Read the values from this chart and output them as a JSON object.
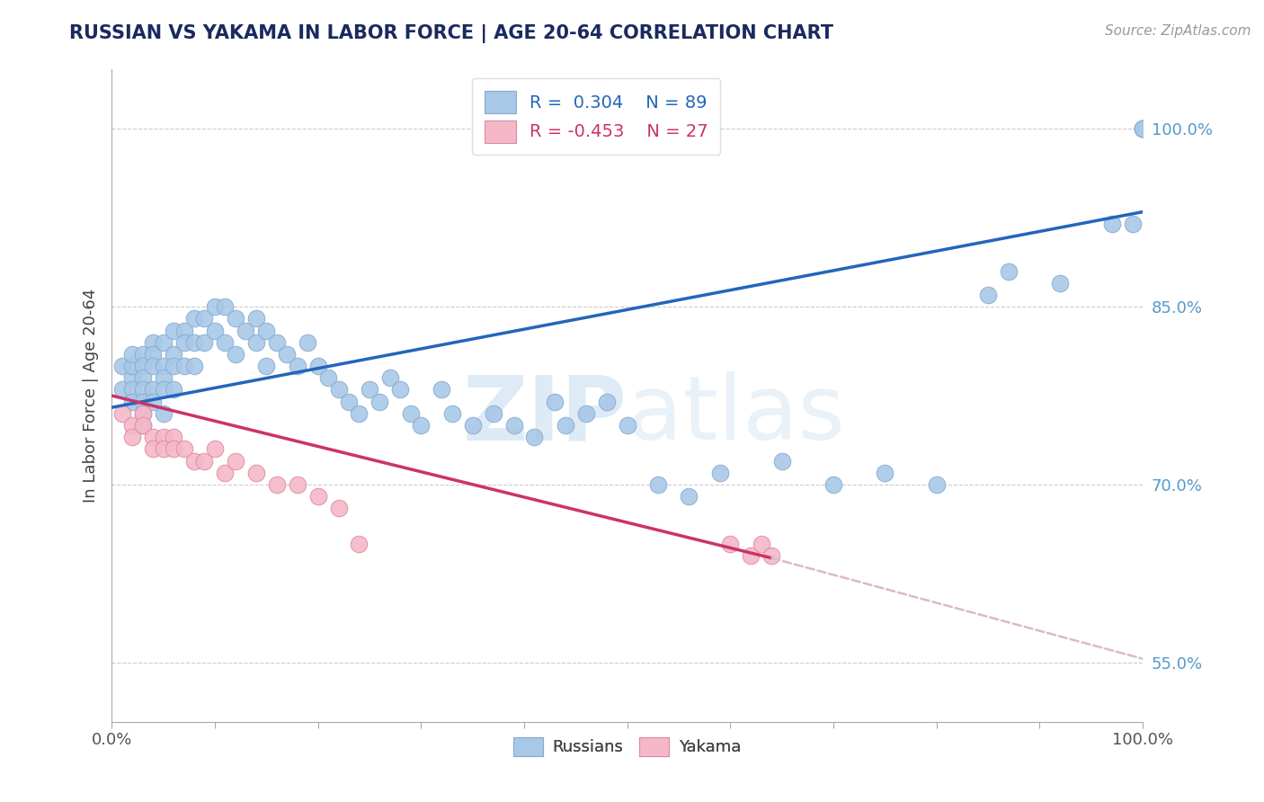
{
  "title": "RUSSIAN VS YAKAMA IN LABOR FORCE | AGE 20-64 CORRELATION CHART",
  "source_text": "Source: ZipAtlas.com",
  "ylabel": "In Labor Force | Age 20-64",
  "background_color": "#ffffff",
  "russian_color": "#a8c8e8",
  "yakama_color": "#f4b8c8",
  "russian_edge": "#88aacc",
  "yakama_edge": "#e088a0",
  "trendline_russian": "#2266bb",
  "trendline_yakama": "#cc3366",
  "trendline_yakama_dashed_color": "#ddb8cc",
  "watermark_color": "#ccdded",
  "xlim": [
    0.0,
    1.0
  ],
  "ylim": [
    0.5,
    1.05
  ],
  "ytick_vals": [
    0.55,
    0.7,
    0.85,
    1.0
  ],
  "ytick_labels": [
    "55.0%",
    "70.0%",
    "85.0%",
    "100.0%"
  ],
  "legend_r_russian": "0.304",
  "legend_n_russian": "89",
  "legend_r_yakama": "-0.453",
  "legend_n_yakama": "27",
  "russians_x": [
    0.01,
    0.01,
    0.02,
    0.02,
    0.02,
    0.02,
    0.02,
    0.03,
    0.03,
    0.03,
    0.03,
    0.03,
    0.03,
    0.03,
    0.04,
    0.04,
    0.04,
    0.04,
    0.04,
    0.05,
    0.05,
    0.05,
    0.05,
    0.05,
    0.06,
    0.06,
    0.06,
    0.06,
    0.07,
    0.07,
    0.07,
    0.08,
    0.08,
    0.08,
    0.09,
    0.09,
    0.1,
    0.1,
    0.11,
    0.11,
    0.12,
    0.12,
    0.13,
    0.14,
    0.14,
    0.15,
    0.15,
    0.16,
    0.17,
    0.18,
    0.19,
    0.2,
    0.21,
    0.22,
    0.23,
    0.24,
    0.25,
    0.26,
    0.27,
    0.28,
    0.29,
    0.3,
    0.32,
    0.33,
    0.35,
    0.37,
    0.39,
    0.41,
    0.43,
    0.44,
    0.46,
    0.48,
    0.5,
    0.53,
    0.56,
    0.59,
    0.65,
    0.7,
    0.75,
    0.8,
    0.85,
    0.87,
    0.92,
    0.97,
    0.99,
    1.0,
    1.0,
    1.0,
    1.0
  ],
  "russians_y": [
    0.78,
    0.8,
    0.79,
    0.8,
    0.81,
    0.78,
    0.77,
    0.81,
    0.8,
    0.79,
    0.78,
    0.77,
    0.76,
    0.75,
    0.82,
    0.81,
    0.8,
    0.78,
    0.77,
    0.82,
    0.8,
    0.79,
    0.78,
    0.76,
    0.83,
    0.81,
    0.8,
    0.78,
    0.83,
    0.82,
    0.8,
    0.84,
    0.82,
    0.8,
    0.84,
    0.82,
    0.85,
    0.83,
    0.85,
    0.82,
    0.84,
    0.81,
    0.83,
    0.84,
    0.82,
    0.83,
    0.8,
    0.82,
    0.81,
    0.8,
    0.82,
    0.8,
    0.79,
    0.78,
    0.77,
    0.76,
    0.78,
    0.77,
    0.79,
    0.78,
    0.76,
    0.75,
    0.78,
    0.76,
    0.75,
    0.76,
    0.75,
    0.74,
    0.77,
    0.75,
    0.76,
    0.77,
    0.75,
    0.7,
    0.69,
    0.71,
    0.72,
    0.7,
    0.71,
    0.7,
    0.86,
    0.88,
    0.87,
    0.92,
    0.92,
    1.0,
    1.0,
    1.0,
    1.0
  ],
  "yakama_x": [
    0.01,
    0.02,
    0.02,
    0.03,
    0.03,
    0.04,
    0.04,
    0.05,
    0.05,
    0.06,
    0.06,
    0.07,
    0.08,
    0.09,
    0.1,
    0.11,
    0.12,
    0.14,
    0.16,
    0.18,
    0.2,
    0.22,
    0.24,
    0.6,
    0.62,
    0.63,
    0.64
  ],
  "yakama_y": [
    0.76,
    0.75,
    0.74,
    0.76,
    0.75,
    0.74,
    0.73,
    0.74,
    0.73,
    0.74,
    0.73,
    0.73,
    0.72,
    0.72,
    0.73,
    0.71,
    0.72,
    0.71,
    0.7,
    0.7,
    0.69,
    0.68,
    0.65,
    0.65,
    0.64,
    0.65,
    0.64
  ],
  "trend_rus_x0": 0.0,
  "trend_rus_y0": 0.765,
  "trend_rus_x1": 1.0,
  "trend_rus_y1": 0.93,
  "trend_yak_x0": 0.0,
  "trend_yak_y0": 0.775,
  "trend_yak_solid_x1": 0.64,
  "trend_yak_solid_y1": 0.638,
  "trend_yak_dash_x1": 1.0,
  "trend_yak_dash_y1": 0.553
}
